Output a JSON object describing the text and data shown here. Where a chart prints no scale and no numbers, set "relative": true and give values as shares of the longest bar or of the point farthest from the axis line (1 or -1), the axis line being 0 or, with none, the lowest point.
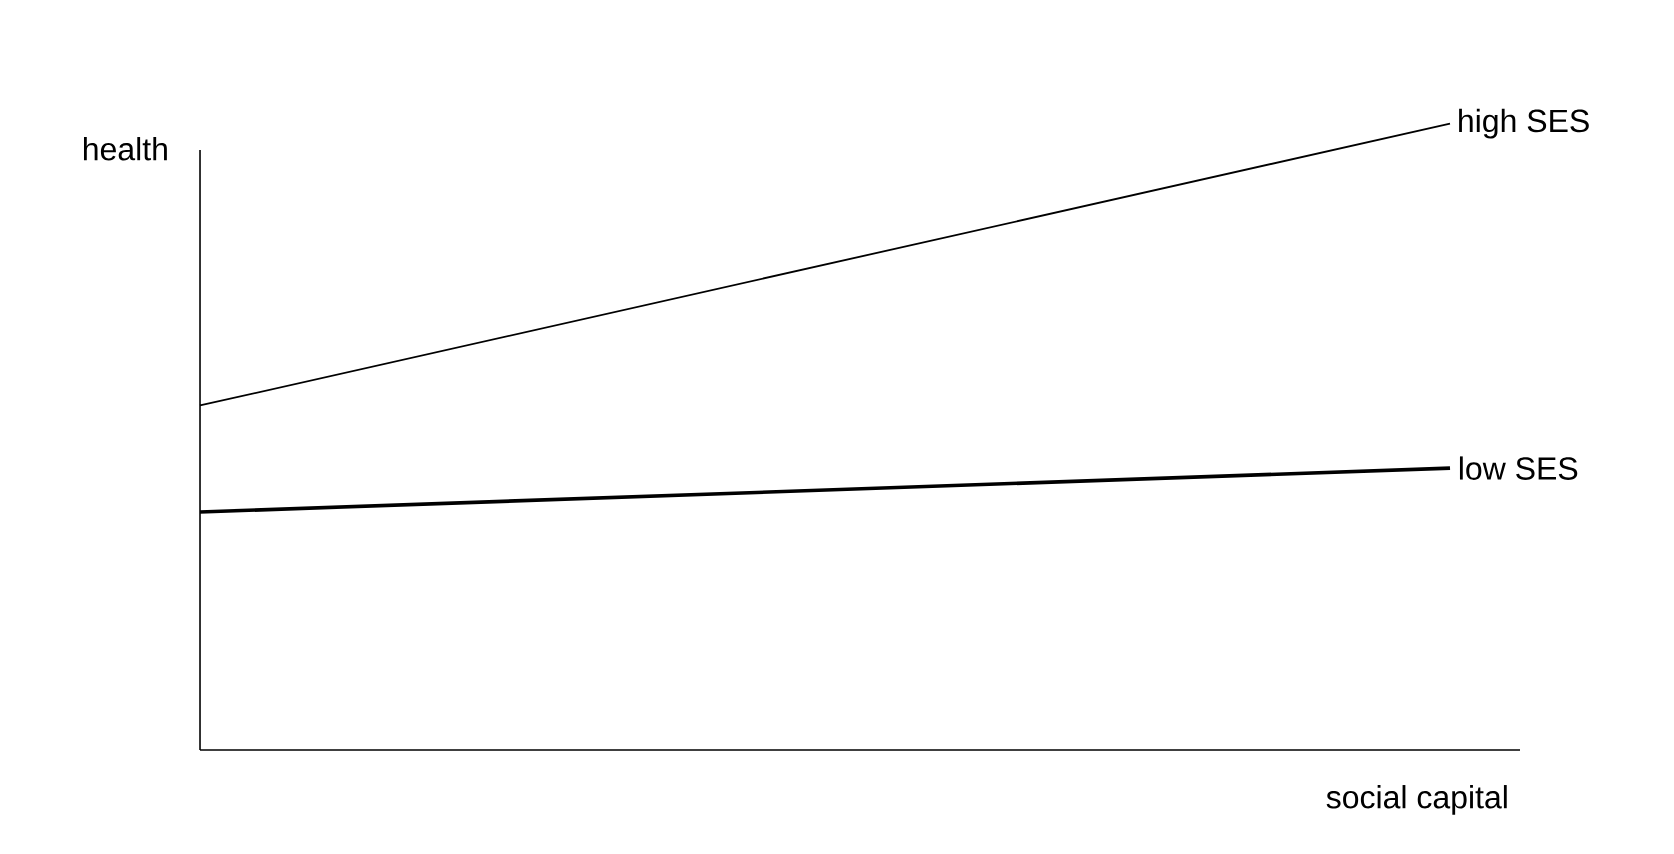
{
  "chart_data": {
    "type": "line",
    "relative": true,
    "xlabel": "social capital",
    "ylabel": "health",
    "categories": [
      null,
      null
    ],
    "series": [
      {
        "name": "high SES",
        "color": "#000000",
        "values": [
          0.55,
          1
        ]
      },
      {
        "name": "low SES",
        "color": "#000000",
        "values": [
          0.38,
          0.45
        ]
      }
    ]
  }
}
